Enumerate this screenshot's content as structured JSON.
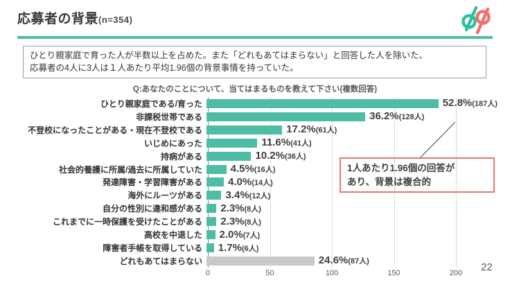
{
  "header": {
    "title": "応募者の背景",
    "n_label": "(n=354)"
  },
  "logo": {
    "name": "d/p",
    "teal": "#2fbfa3",
    "pink": "#f2706b"
  },
  "summary": {
    "line1": "ひとり親家庭で育った人が半数以上を占めた。また「どれもあてはまらない」と回答した人を除いた、",
    "line2": "応募者の4人に3人は１人あたり平均1.96個の背景事情を持っていた。"
  },
  "question": "Q:あなたのことについて、当てはまるものを教えて下さい(複数回答)",
  "annotation": {
    "line1": "1人あたり1.96個の回答が",
    "line2": "あり、背景は複合的"
  },
  "page_number": "22",
  "colors": {
    "teal": "#4dbea5",
    "gray": "#c9c9c9",
    "accent_red": "#e7756c",
    "grid": "#dbdbdb",
    "axis": "#8c8c8c"
  },
  "chart_data": {
    "type": "bar",
    "orientation": "horizontal",
    "title": "Q:あなたのことについて、当てはまるものを教えて下さい(複数回答)",
    "xticks": [
      0,
      50,
      100,
      150,
      200
    ],
    "xlim": [
      0,
      240
    ],
    "grid": true,
    "unit": "人",
    "bars": [
      {
        "label": "ひとり親家庭である/育った",
        "percent": "52.8%",
        "count_label": "(187人)",
        "value": 187,
        "color": "teal"
      },
      {
        "label": "非課税世帯である",
        "percent": "36.2%",
        "count_label": "(128人)",
        "value": 128,
        "color": "teal"
      },
      {
        "label": "不登校になったことがある・現在不登校である",
        "percent": "17.2%",
        "count_label": "(61人)",
        "value": 61,
        "color": "teal"
      },
      {
        "label": "いじめにあった",
        "percent": "11.6%",
        "count_label": "(41人)",
        "value": 41,
        "color": "teal"
      },
      {
        "label": "持病がある",
        "percent": "10.2%",
        "count_label": "(36人)",
        "value": 36,
        "color": "teal"
      },
      {
        "label": "社会的養護に所属/過去に所属していた",
        "percent": "4.5%",
        "count_label": "(16人)",
        "value": 16,
        "color": "teal"
      },
      {
        "label": "発達障害・学習障害がある",
        "percent": "4.0%",
        "count_label": "(14人)",
        "value": 14,
        "color": "teal"
      },
      {
        "label": "海外にルーツがある",
        "percent": "3.4%",
        "count_label": "(12人)",
        "value": 12,
        "color": "teal"
      },
      {
        "label": "自分の性別に違和感がある",
        "percent": "2.3%",
        "count_label": "(8人)",
        "value": 8,
        "color": "teal"
      },
      {
        "label": "これまでに一時保護を受けたことがある",
        "percent": "2.3%",
        "count_label": "(8人)",
        "value": 8,
        "color": "teal"
      },
      {
        "label": "高校を中退した",
        "percent": "2.0%",
        "count_label": "(7人)",
        "value": 7,
        "color": "teal"
      },
      {
        "label": "障害者手帳を取得している",
        "percent": "1.7%",
        "count_label": "(6人)",
        "value": 6,
        "color": "teal"
      },
      {
        "label": "どれもあてはまらない",
        "percent": "24.6%",
        "count_label": "(87人)",
        "value": 87,
        "color": "gray"
      }
    ]
  }
}
